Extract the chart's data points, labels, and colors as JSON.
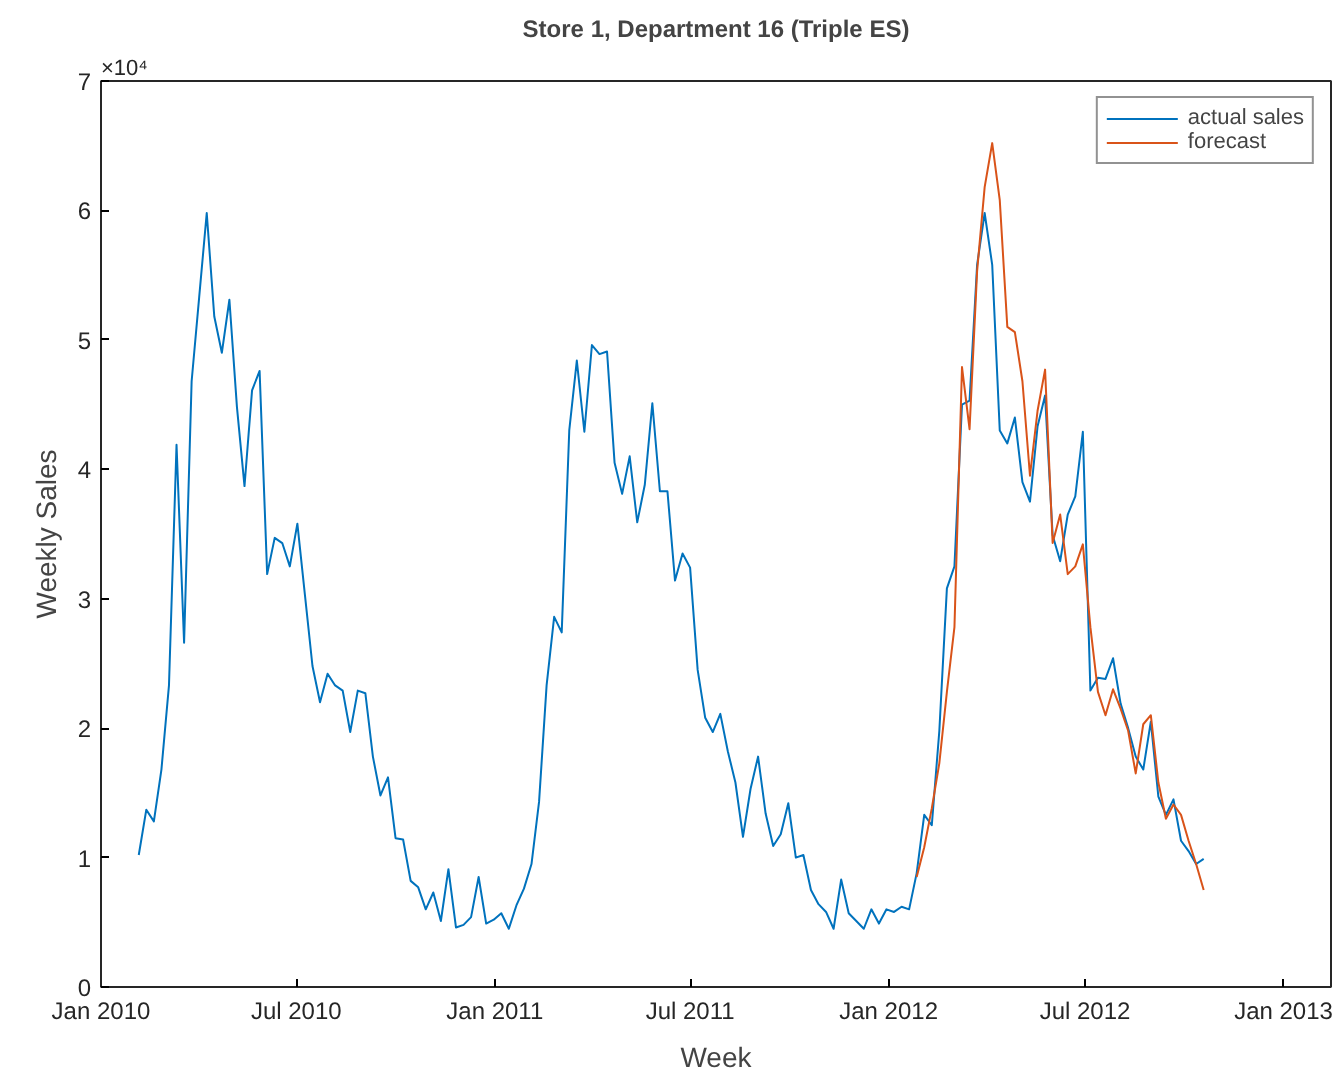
{
  "chart_data": {
    "type": "line",
    "title": "Store 1, Department 16 (Triple ES)",
    "xlabel": "Week",
    "ylabel": "Weekly Sales",
    "annotations": [
      "×10⁴"
    ],
    "x": [
      "2010-02-05",
      "2010-02-12",
      "2010-02-19",
      "2010-02-26",
      "2010-03-05",
      "2010-03-12",
      "2010-03-19",
      "2010-03-26",
      "2010-04-02",
      "2010-04-09",
      "2010-04-16",
      "2010-04-23",
      "2010-04-30",
      "2010-05-07",
      "2010-05-14",
      "2010-05-21",
      "2010-05-28",
      "2010-06-04",
      "2010-06-11",
      "2010-06-18",
      "2010-06-25",
      "2010-07-02",
      "2010-07-09",
      "2010-07-16",
      "2010-07-23",
      "2010-07-30",
      "2010-08-06",
      "2010-08-13",
      "2010-08-20",
      "2010-08-27",
      "2010-09-03",
      "2010-09-10",
      "2010-09-17",
      "2010-09-24",
      "2010-10-01",
      "2010-10-08",
      "2010-10-15",
      "2010-10-22",
      "2010-10-29",
      "2010-11-05",
      "2010-11-12",
      "2010-11-19",
      "2010-11-26",
      "2010-12-03",
      "2010-12-10",
      "2010-12-17",
      "2010-12-24",
      "2010-12-31",
      "2011-01-07",
      "2011-01-14",
      "2011-01-21",
      "2011-01-28",
      "2011-02-04",
      "2011-02-11",
      "2011-02-18",
      "2011-02-25",
      "2011-03-04",
      "2011-03-11",
      "2011-03-18",
      "2011-03-25",
      "2011-04-01",
      "2011-04-08",
      "2011-04-15",
      "2011-04-22",
      "2011-04-29",
      "2011-05-06",
      "2011-05-13",
      "2011-05-20",
      "2011-05-27",
      "2011-06-03",
      "2011-06-10",
      "2011-06-17",
      "2011-06-24",
      "2011-07-01",
      "2011-07-08",
      "2011-07-15",
      "2011-07-22",
      "2011-07-29",
      "2011-08-05",
      "2011-08-12",
      "2011-08-19",
      "2011-08-26",
      "2011-09-02",
      "2011-09-09",
      "2011-09-16",
      "2011-09-23",
      "2011-09-30",
      "2011-10-07",
      "2011-10-14",
      "2011-10-21",
      "2011-10-28",
      "2011-11-04",
      "2011-11-11",
      "2011-11-18",
      "2011-11-25",
      "2011-12-02",
      "2011-12-09",
      "2011-12-16",
      "2011-12-23",
      "2011-12-30",
      "2012-01-06",
      "2012-01-13",
      "2012-01-20",
      "2012-01-27",
      "2012-02-03",
      "2012-02-10",
      "2012-02-17",
      "2012-02-24",
      "2012-03-02",
      "2012-03-09",
      "2012-03-16",
      "2012-03-23",
      "2012-03-30",
      "2012-04-06",
      "2012-04-13",
      "2012-04-20",
      "2012-04-27",
      "2012-05-04",
      "2012-05-11",
      "2012-05-18",
      "2012-05-25",
      "2012-06-01",
      "2012-06-08",
      "2012-06-15",
      "2012-06-22",
      "2012-06-29",
      "2012-07-06",
      "2012-07-13",
      "2012-07-20",
      "2012-07-27",
      "2012-08-03",
      "2012-08-10",
      "2012-08-17",
      "2012-08-24",
      "2012-08-31",
      "2012-09-07",
      "2012-09-14",
      "2012-09-21",
      "2012-09-28",
      "2012-10-05",
      "2012-10-12",
      "2012-10-19"
    ],
    "series": [
      {
        "name": "actual sales",
        "color": "#0072bd",
        "values": [
          1.02,
          1.37,
          1.28,
          1.68,
          2.33,
          4.19,
          2.66,
          4.68,
          5.33,
          5.98,
          5.18,
          4.9,
          5.31,
          4.48,
          3.87,
          4.61,
          4.76,
          3.19,
          3.47,
          3.43,
          3.25,
          3.58,
          3.03,
          2.48,
          2.2,
          2.42,
          2.33,
          2.29,
          1.97,
          2.29,
          2.27,
          1.78,
          1.48,
          1.62,
          1.15,
          1.14,
          0.82,
          0.77,
          0.6,
          0.73,
          0.51,
          0.91,
          0.46,
          0.48,
          0.54,
          0.85,
          0.49,
          0.52,
          0.57,
          0.45,
          0.63,
          0.76,
          0.95,
          1.43,
          2.33,
          2.86,
          2.74,
          4.3,
          4.84,
          4.29,
          4.96,
          4.89,
          4.91,
          4.05,
          3.81,
          4.1,
          3.59,
          3.88,
          4.51,
          3.83,
          3.83,
          3.14,
          3.35,
          3.24,
          2.45,
          2.08,
          1.97,
          2.11,
          1.82,
          1.58,
          1.16,
          1.53,
          1.78,
          1.34,
          1.09,
          1.18,
          1.42,
          1.0,
          1.02,
          0.75,
          0.64,
          0.58,
          0.45,
          0.83,
          0.57,
          0.51,
          0.45,
          0.6,
          0.49,
          0.6,
          0.58,
          0.62,
          0.6,
          0.88,
          1.33,
          1.25,
          1.98,
          3.08,
          3.25,
          4.5,
          4.53,
          5.58,
          5.98,
          5.58,
          4.3,
          4.2,
          4.4,
          3.9,
          3.75,
          4.33,
          4.57,
          3.49,
          3.29,
          3.65,
          3.79,
          4.29,
          2.29,
          2.39,
          2.38,
          2.54,
          2.19,
          2.0,
          1.78,
          1.68,
          2.05,
          1.47,
          1.33,
          1.45,
          1.13,
          1.05,
          0.95,
          0.99
        ]
      },
      {
        "name": "forecast",
        "color": "#d95319",
        "x": [
          "2012-01-27",
          "2012-02-03",
          "2012-02-10",
          "2012-02-17",
          "2012-02-24",
          "2012-03-02",
          "2012-03-09",
          "2012-03-16",
          "2012-03-23",
          "2012-03-30",
          "2012-04-06",
          "2012-04-13",
          "2012-04-20",
          "2012-04-27",
          "2012-05-04",
          "2012-05-11",
          "2012-05-18",
          "2012-05-25",
          "2012-06-01",
          "2012-06-08",
          "2012-06-15",
          "2012-06-22",
          "2012-06-29",
          "2012-07-06",
          "2012-07-13",
          "2012-07-20",
          "2012-07-27",
          "2012-08-03",
          "2012-08-10",
          "2012-08-17",
          "2012-08-24",
          "2012-08-31",
          "2012-09-07",
          "2012-09-14",
          "2012-09-21",
          "2012-09-28",
          "2012-10-05",
          "2012-10-12",
          "2012-10-19"
        ],
        "values": [
          0.85,
          1.08,
          1.38,
          1.73,
          2.28,
          2.78,
          4.79,
          4.31,
          5.53,
          6.18,
          6.52,
          6.08,
          5.1,
          5.06,
          4.68,
          3.95,
          4.45,
          4.77,
          3.43,
          3.65,
          3.19,
          3.25,
          3.42,
          2.78,
          2.28,
          2.1,
          2.3,
          2.15,
          1.98,
          1.65,
          2.03,
          2.1,
          1.58,
          1.3,
          1.41,
          1.33,
          1.13,
          0.95,
          0.75
        ]
      }
    ],
    "xlim": [
      "2010-01-01",
      "2013-02-14"
    ],
    "xticks": [
      {
        "value": "2010-01-01",
        "label": "Jan 2010"
      },
      {
        "value": "2010-07-01",
        "label": "Jul 2010"
      },
      {
        "value": "2011-01-01",
        "label": "Jan 2011"
      },
      {
        "value": "2011-07-01",
        "label": "Jul 2011"
      },
      {
        "value": "2012-01-01",
        "label": "Jan 2012"
      },
      {
        "value": "2012-07-01",
        "label": "Jul 2012"
      },
      {
        "value": "2013-01-01",
        "label": "Jan 2013"
      }
    ],
    "ylim": [
      0,
      7
    ],
    "yticks": [
      0,
      1,
      2,
      3,
      4,
      5,
      6,
      7
    ],
    "grid": false,
    "legend": "top right",
    "line_style": "solid",
    "marker": "none"
  }
}
